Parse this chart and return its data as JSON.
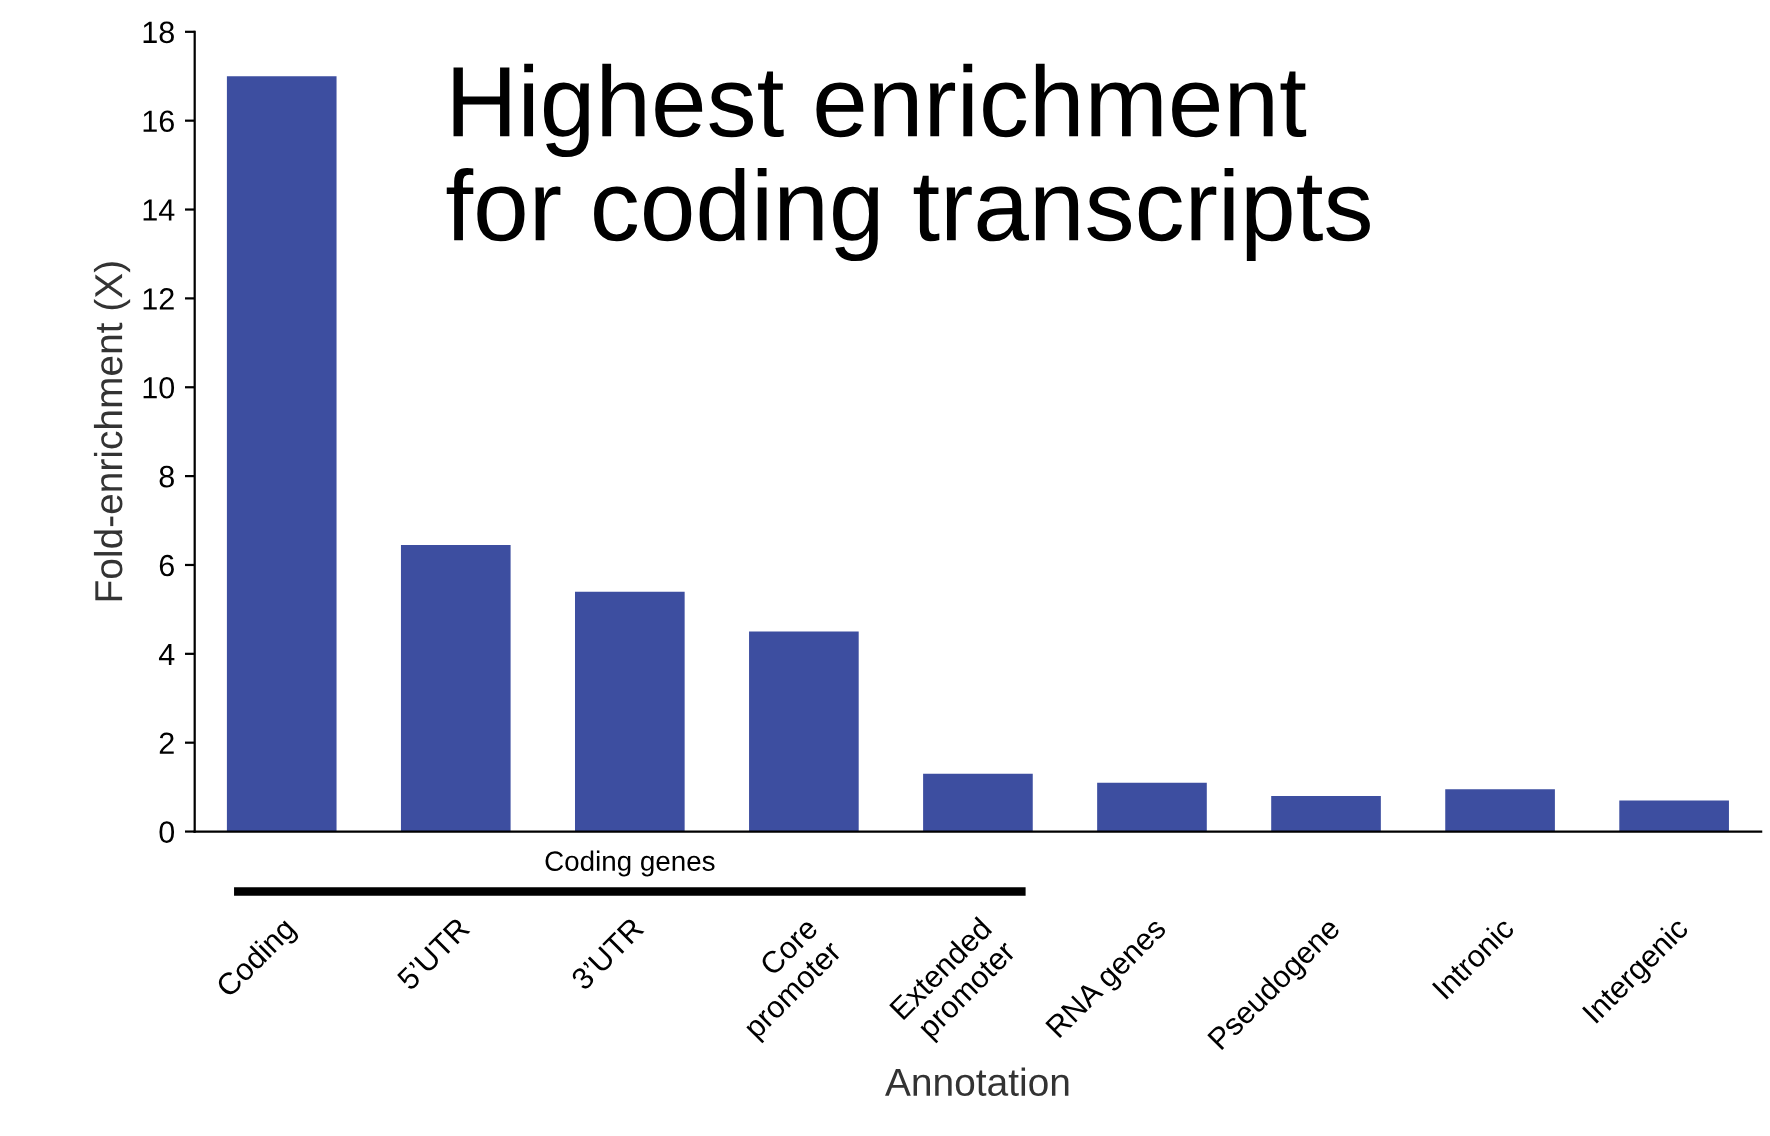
{
  "chart_data": {
    "type": "bar",
    "categories": [
      "Coding",
      "5’UTR",
      "3’UTR",
      "Core\npromoter",
      "Extended\npromoter",
      "RNA genes",
      "Pseudogene",
      "Intronic",
      "Intergenic"
    ],
    "values": [
      17.0,
      6.45,
      5.4,
      4.5,
      1.3,
      1.1,
      0.8,
      0.95,
      0.7
    ],
    "color": "#3d4ea0",
    "xlabel": "Annotation",
    "ylabel": "Fold-enrichment (X)",
    "ylim": [
      0,
      18
    ],
    "yticks": [
      0,
      2,
      4,
      6,
      8,
      10,
      12,
      14,
      16,
      18
    ],
    "annotations": [
      "Highest enrichment\nfor coding transcripts",
      "Coding genes"
    ],
    "grid": false,
    "legend": false
  }
}
